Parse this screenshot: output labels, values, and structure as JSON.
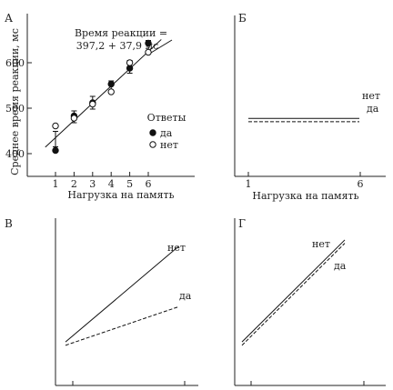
{
  "chart_data": [
    {
      "panel_label": "А",
      "type": "scatter",
      "ylabel": "Среднее время реакции, мс",
      "xlabel": "Нагрузка на память",
      "x_ticks": [
        "1",
        "2",
        "3",
        "4",
        "5",
        "6"
      ],
      "y_ticks": [
        "400",
        "500",
        "600"
      ],
      "xlim": [
        0,
        7
      ],
      "ylim": [
        360,
        680
      ],
      "annotation": [
        "Время реакции =",
        "397,2 + 37,9 мс"
      ],
      "fit_line": {
        "intercept": 397.2,
        "slope": 37.9
      },
      "legend": {
        "title": "Ответы",
        "entries": [
          {
            "label": "да",
            "marker": "filled-circle"
          },
          {
            "label": "нет",
            "marker": "open-circle"
          }
        ]
      },
      "series": [
        {
          "name": "да",
          "marker": "filled",
          "x": [
            1,
            2,
            3,
            4,
            5,
            6
          ],
          "y": [
            407,
            483,
            512,
            553,
            588,
            643
          ]
        },
        {
          "name": "нет",
          "marker": "open",
          "x": [
            1,
            2,
            3,
            4,
            5,
            6
          ],
          "y": [
            461,
            478,
            509,
            536,
            600,
            623
          ]
        }
      ],
      "error_bars": {
        "x": [
          1,
          2,
          3,
          4,
          5,
          6
        ],
        "center": [
          432,
          481,
          512,
          548,
          591,
          635
        ],
        "half_width": [
          17,
          13,
          14,
          12,
          14,
          14
        ]
      }
    },
    {
      "panel_label": "Б",
      "type": "line",
      "xlabel": "Нагрузка на память",
      "x_ticks": [
        "1",
        "6"
      ],
      "series": [
        {
          "name": "нет",
          "style": "solid",
          "start": 0.36,
          "end": 0.36
        },
        {
          "name": "да",
          "style": "dashed",
          "start": 0.34,
          "end": 0.34
        }
      ]
    },
    {
      "panel_label": "В",
      "type": "line",
      "series": [
        {
          "name": "нет",
          "style": "solid",
          "start": 0.26,
          "end": 0.83
        },
        {
          "name": "да",
          "style": "dashed",
          "start": 0.24,
          "end": 0.47
        }
      ]
    },
    {
      "panel_label": "Г",
      "type": "line",
      "series": [
        {
          "name": "нет",
          "style": "solid",
          "start": 0.26,
          "end": 0.87
        },
        {
          "name": "да",
          "style": "dashed",
          "start": 0.24,
          "end": 0.85
        }
      ]
    }
  ]
}
